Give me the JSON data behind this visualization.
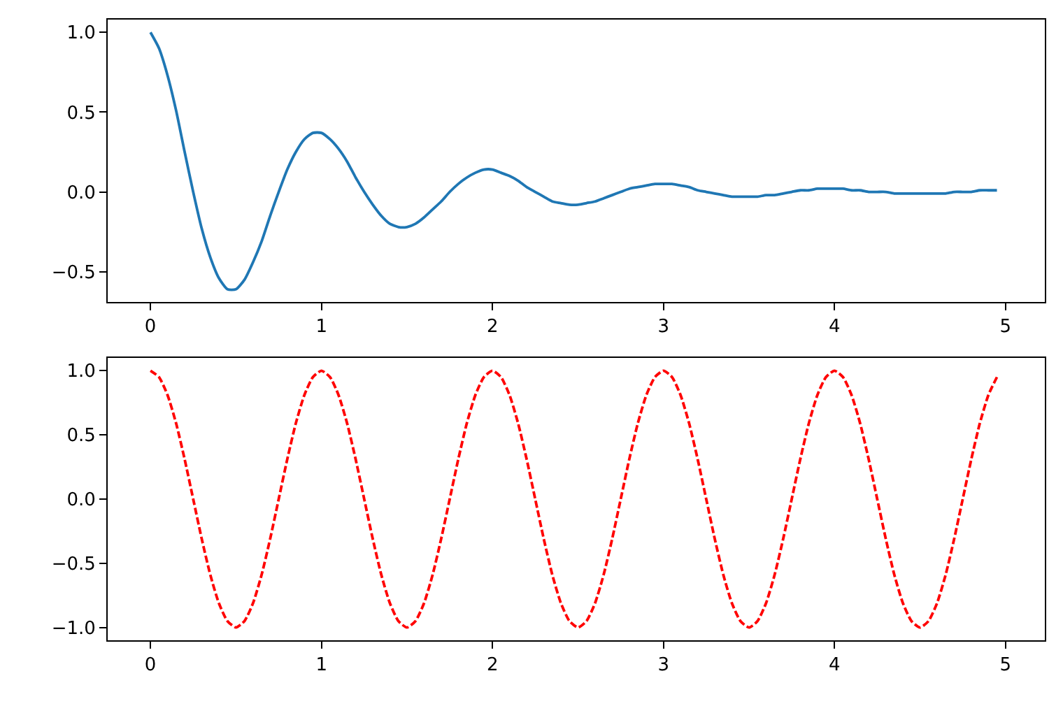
{
  "chart_data": [
    {
      "type": "line",
      "x": [
        0,
        0.05,
        0.1,
        0.15,
        0.2,
        0.25,
        0.3,
        0.35,
        0.4,
        0.45,
        0.5,
        0.55,
        0.6,
        0.65,
        0.7,
        0.75,
        0.8,
        0.85,
        0.9,
        0.95,
        1,
        1.05,
        1.1,
        1.15,
        1.2,
        1.25,
        1.3,
        1.35,
        1.4,
        1.45,
        1.5,
        1.55,
        1.6,
        1.65,
        1.7,
        1.75,
        1.8,
        1.85,
        1.9,
        1.95,
        2,
        2.05,
        2.1,
        2.15,
        2.2,
        2.25,
        2.3,
        2.35,
        2.4,
        2.45,
        2.5,
        2.55,
        2.6,
        2.65,
        2.7,
        2.75,
        2.8,
        2.85,
        2.9,
        2.95,
        3,
        3.05,
        3.1,
        3.15,
        3.2,
        3.25,
        3.3,
        3.35,
        3.4,
        3.45,
        3.5,
        3.55,
        3.6,
        3.65,
        3.7,
        3.75,
        3.8,
        3.85,
        3.9,
        3.95,
        4,
        4.05,
        4.1,
        4.15,
        4.2,
        4.25,
        4.3,
        4.35,
        4.4,
        4.45,
        4.5,
        4.55,
        4.6,
        4.65,
        4.7,
        4.75,
        4.8,
        4.85,
        4.9,
        4.95
      ],
      "series": [
        {
          "color": "#1f77b4",
          "values": [
            1.0,
            0.9,
            0.73,
            0.51,
            0.25,
            0,
            -0.23,
            -0.41,
            -0.54,
            -0.61,
            -0.61,
            -0.55,
            -0.44,
            -0.31,
            -0.15,
            0,
            0.14,
            0.25,
            0.33,
            0.37,
            0.37,
            0.33,
            0.27,
            0.19,
            0.09,
            0,
            -0.08,
            -0.15,
            -0.2,
            -0.22,
            -0.22,
            -0.2,
            -0.16,
            -0.11,
            -0.06,
            0,
            0.05,
            0.09,
            0.12,
            0.14,
            0.14,
            0.12,
            0.1,
            0.07,
            0.03,
            0,
            -0.03,
            -0.06,
            -0.07,
            -0.08,
            -0.08,
            -0.07,
            -0.06,
            -0.04,
            -0.02,
            0,
            0.02,
            0.03,
            0.04,
            0.05,
            0.05,
            0.05,
            0.04,
            0.03,
            0.01,
            0,
            -0.01,
            -0.02,
            -0.03,
            -0.03,
            -0.03,
            -0.03,
            -0.02,
            -0.02,
            -0.01,
            0,
            0.01,
            0.01,
            0.02,
            0.02,
            0.02,
            0.02,
            0.01,
            0.01,
            0,
            0,
            0,
            -0.01,
            -0.01,
            -0.01,
            -0.01,
            -0.01,
            -0.01,
            -0.01,
            0,
            0,
            0,
            0.01,
            0.01,
            0.01
          ]
        }
      ],
      "line_style": "solid",
      "marker": "none",
      "xlim": [
        -0.25,
        5.23
      ],
      "xticks": [
        0,
        1,
        2,
        3,
        4,
        5
      ],
      "ylim": [
        -0.69,
        1.08
      ],
      "yticks": [
        {
          "value": -0.5,
          "label": "−0.5"
        },
        {
          "value": 0,
          "label": "0.0"
        },
        {
          "value": 0.5,
          "label": "0.5"
        },
        {
          "value": 1,
          "label": "1.0"
        }
      ]
    },
    {
      "type": "line",
      "x": [
        0,
        0.05,
        0.1,
        0.15,
        0.2,
        0.25,
        0.3,
        0.35,
        0.4,
        0.45,
        0.5,
        0.55,
        0.6,
        0.65,
        0.7,
        0.75,
        0.8,
        0.85,
        0.9,
        0.95,
        1,
        1.05,
        1.1,
        1.15,
        1.2,
        1.25,
        1.3,
        1.35,
        1.4,
        1.45,
        1.5,
        1.55,
        1.6,
        1.65,
        1.7,
        1.75,
        1.8,
        1.85,
        1.9,
        1.95,
        2,
        2.05,
        2.1,
        2.15,
        2.2,
        2.25,
        2.3,
        2.35,
        2.4,
        2.45,
        2.5,
        2.55,
        2.6,
        2.65,
        2.7,
        2.75,
        2.8,
        2.85,
        2.9,
        2.95,
        3,
        3.05,
        3.1,
        3.15,
        3.2,
        3.25,
        3.3,
        3.35,
        3.4,
        3.45,
        3.5,
        3.55,
        3.6,
        3.65,
        3.7,
        3.75,
        3.8,
        3.85,
        3.9,
        3.95,
        4,
        4.05,
        4.1,
        4.15,
        4.2,
        4.25,
        4.3,
        4.35,
        4.4,
        4.45,
        4.5,
        4.55,
        4.6,
        4.65,
        4.7,
        4.75,
        4.8,
        4.85,
        4.9,
        4.95
      ],
      "series": [
        {
          "color": "#ff0000",
          "values": [
            1,
            0.95,
            0.81,
            0.59,
            0.31,
            0,
            -0.31,
            -0.59,
            -0.81,
            -0.95,
            -1,
            -0.95,
            -0.81,
            -0.59,
            -0.31,
            0,
            0.31,
            0.59,
            0.81,
            0.95,
            1,
            0.95,
            0.81,
            0.59,
            0.31,
            0,
            -0.31,
            -0.59,
            -0.81,
            -0.95,
            -1,
            -0.95,
            -0.81,
            -0.59,
            -0.31,
            0,
            0.31,
            0.59,
            0.81,
            0.95,
            1,
            0.95,
            0.81,
            0.59,
            0.31,
            0,
            -0.31,
            -0.59,
            -0.81,
            -0.95,
            -1,
            -0.95,
            -0.81,
            -0.59,
            -0.31,
            0,
            0.31,
            0.59,
            0.81,
            0.95,
            1,
            0.95,
            0.81,
            0.59,
            0.31,
            0,
            -0.31,
            -0.59,
            -0.81,
            -0.95,
            -1,
            -0.95,
            -0.81,
            -0.59,
            -0.31,
            0,
            0.31,
            0.59,
            0.81,
            0.95,
            1,
            0.95,
            0.81,
            0.59,
            0.31,
            0,
            -0.31,
            -0.59,
            -0.81,
            -0.95,
            -1,
            -0.95,
            -0.81,
            -0.59,
            -0.31,
            0,
            0.31,
            0.59,
            0.81,
            0.95
          ]
        }
      ],
      "line_style": "dashed",
      "marker": "none",
      "xlim": [
        -0.25,
        5.23
      ],
      "xticks": [
        0,
        1,
        2,
        3,
        4,
        5
      ],
      "ylim": [
        -1.1,
        1.1
      ],
      "yticks": [
        {
          "value": -1,
          "label": "−1.0"
        },
        {
          "value": -0.5,
          "label": "−0.5"
        },
        {
          "value": 0,
          "label": "0.0"
        },
        {
          "value": 0.5,
          "label": "0.5"
        },
        {
          "value": 1,
          "label": "1.0"
        }
      ]
    }
  ]
}
